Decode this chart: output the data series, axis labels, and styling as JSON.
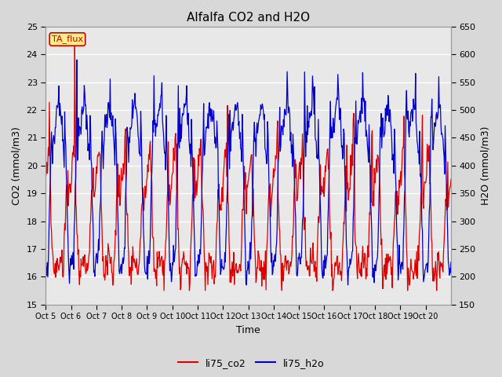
{
  "title": "Alfalfa CO2 and H2O",
  "xlabel": "Time",
  "ylabel_left": "CO2 (mmol/m3)",
  "ylabel_right": "H2O (mmol/m3)",
  "ylim_left": [
    15.0,
    25.0
  ],
  "ylim_right": [
    150,
    650
  ],
  "yticks_left": [
    15.0,
    16.0,
    17.0,
    18.0,
    19.0,
    20.0,
    21.0,
    22.0,
    23.0,
    24.0,
    25.0
  ],
  "yticks_right": [
    150,
    200,
    250,
    300,
    350,
    400,
    450,
    500,
    550,
    600,
    650
  ],
  "xtick_labels": [
    "Oct 5",
    "Oct 6",
    "Oct 7",
    "Oct 8",
    "Oct 9",
    "Oct 10",
    "Oct 11",
    "Oct 12",
    "Oct 13",
    "Oct 14",
    "Oct 15",
    "Oct 16",
    "Oct 17",
    "Oct 18",
    "Oct 19",
    "Oct 20"
  ],
  "legend_entries": [
    "li75_co2",
    "li75_h2o"
  ],
  "color_co2": "#dd0000",
  "color_h2o": "#0000cc",
  "annotation_text": "TA_flux",
  "annotation_color": "#cc0000",
  "annotation_bg": "#ffee88",
  "background_color": "#d8d8d8",
  "plot_bg": "#e8e8e8",
  "grid_color": "#ffffff",
  "linewidth": 0.9,
  "seed": 123
}
